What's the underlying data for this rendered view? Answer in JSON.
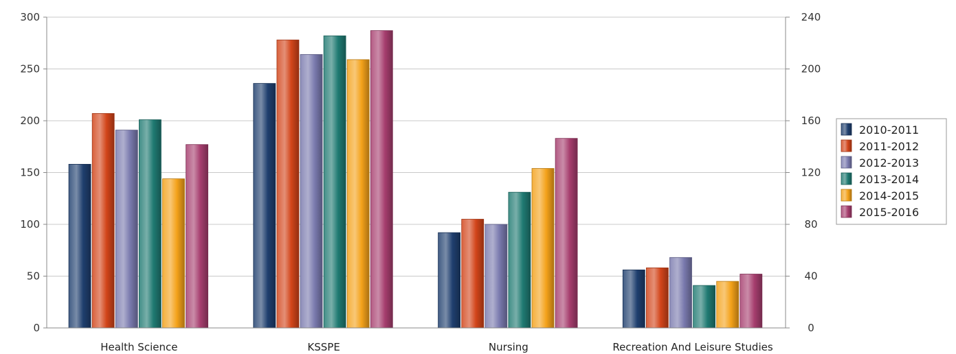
{
  "chart_data": {
    "type": "bar",
    "categories": [
      "Health Science",
      "KSSPE",
      "Nursing",
      "Recreation And Leisure Studies"
    ],
    "series": [
      {
        "name": "2010-2011",
        "values": [
          158,
          236,
          92,
          56
        ]
      },
      {
        "name": "2011-2012",
        "values": [
          207,
          278,
          105,
          58
        ]
      },
      {
        "name": "2012-2013",
        "values": [
          191,
          264,
          100,
          68
        ]
      },
      {
        "name": "2013-2014",
        "values": [
          201,
          282,
          131,
          41
        ]
      },
      {
        "name": "2014-2015",
        "values": [
          144,
          259,
          154,
          45
        ]
      },
      {
        "name": "2015-2016",
        "values": [
          177,
          287,
          183,
          52
        ]
      }
    ],
    "ylim": [
      0,
      300
    ],
    "y_ticks": [
      "0",
      "50",
      "100",
      "150",
      "200",
      "250",
      "300"
    ],
    "y2lim": [
      0,
      240
    ],
    "y2_ticks": [
      "0",
      "40",
      "80",
      "120",
      "160",
      "200",
      "240"
    ],
    "grid": true,
    "legend_position": "right",
    "colors": [
      "#1f3f6e",
      "#d2451a",
      "#7a7aae",
      "#1f7a72",
      "#f4a21a",
      "#a63e6e"
    ]
  }
}
